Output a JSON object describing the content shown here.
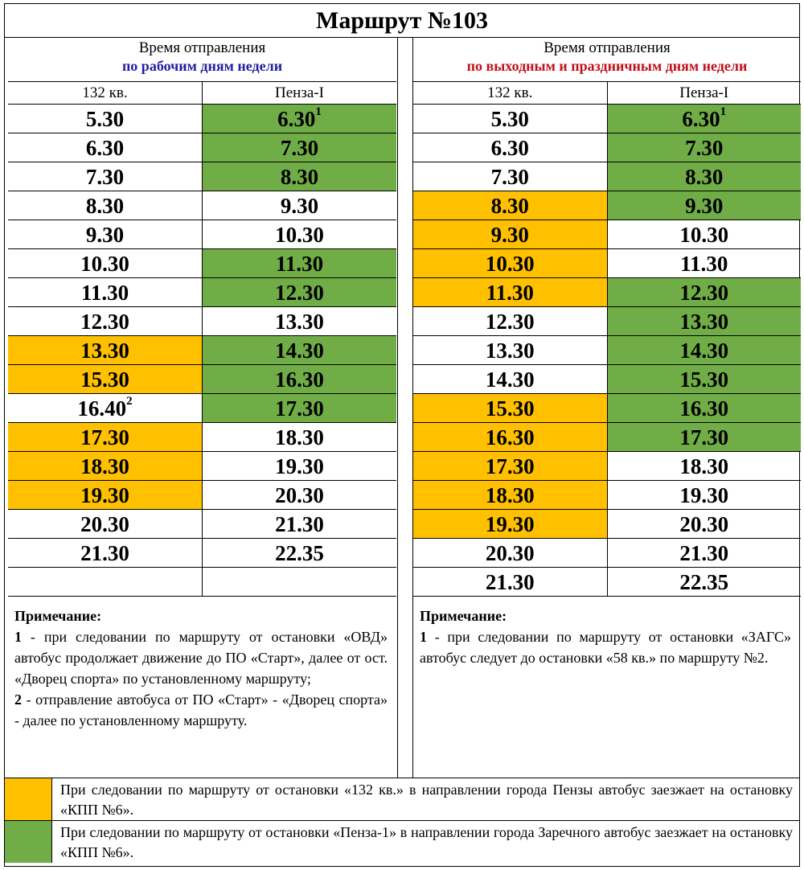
{
  "title": "Маршрут №103",
  "colors": {
    "orange": "#ffc000",
    "green": "#70ad47",
    "weekday_blue": "#1f1f9e",
    "holiday_red": "#c0101a"
  },
  "weekday": {
    "header_line1": "Время отправления",
    "header_line2": "по рабочим дням недели",
    "col1": "132 кв.",
    "col2": "Пенза-I",
    "rows": [
      {
        "a": "5.30",
        "b": "6.30",
        "b_sup": "1",
        "a_hl": "",
        "b_hl": "green"
      },
      {
        "a": "6.30",
        "b": "7.30",
        "a_hl": "",
        "b_hl": "green"
      },
      {
        "a": "7.30",
        "b": "8.30",
        "a_hl": "",
        "b_hl": "green"
      },
      {
        "a": "8.30",
        "b": "9.30",
        "a_hl": "",
        "b_hl": ""
      },
      {
        "a": "9.30",
        "b": "10.30",
        "a_hl": "",
        "b_hl": ""
      },
      {
        "a": "10.30",
        "b": "11.30",
        "a_hl": "",
        "b_hl": "green"
      },
      {
        "a": "11.30",
        "b": "12.30",
        "a_hl": "",
        "b_hl": "green"
      },
      {
        "a": "12.30",
        "b": "13.30",
        "a_hl": "",
        "b_hl": ""
      },
      {
        "a": "13.30",
        "b": "14.30",
        "a_hl": "orange",
        "b_hl": "green"
      },
      {
        "a": "15.30",
        "b": "16.30",
        "a_hl": "orange",
        "b_hl": "green"
      },
      {
        "a": "16.40",
        "a_sup": "2",
        "b": "17.30",
        "a_hl": "",
        "b_hl": "green"
      },
      {
        "a": "17.30",
        "b": "18.30",
        "a_hl": "orange",
        "b_hl": ""
      },
      {
        "a": "18.30",
        "b": "19.30",
        "a_hl": "orange",
        "b_hl": ""
      },
      {
        "a": "19.30",
        "b": "20.30",
        "a_hl": "orange",
        "b_hl": ""
      },
      {
        "a": "20.30",
        "b": "21.30",
        "a_hl": "",
        "b_hl": ""
      },
      {
        "a": "21.30",
        "b": "22.35",
        "a_hl": "",
        "b_hl": ""
      },
      {
        "a": "",
        "b": "",
        "a_hl": "",
        "b_hl": ""
      }
    ],
    "note_title": "Примечание:",
    "notes": [
      {
        "num": "1",
        "text": " - при следовании по маршруту от остановки «ОВД» автобус продолжает движение до ПО «Старт», далее от ост. «Дворец спорта» по установленному маршруту;"
      },
      {
        "num": "2",
        "text": " - отправление автобуса от ПО «Старт» - «Дворец спорта» - далее по установленному маршруту."
      }
    ]
  },
  "holiday": {
    "header_line1": "Время отправления",
    "header_line2": "по выходным и праздничным дням недели",
    "col1": "132 кв.",
    "col2": "Пенза-I",
    "rows": [
      {
        "a": "5.30",
        "b": "6.30",
        "b_sup": "1",
        "a_hl": "",
        "b_hl": "green"
      },
      {
        "a": "6.30",
        "b": "7.30",
        "a_hl": "",
        "b_hl": "green"
      },
      {
        "a": "7.30",
        "b": "8.30",
        "a_hl": "",
        "b_hl": "green"
      },
      {
        "a": "8.30",
        "b": "9.30",
        "a_hl": "orange",
        "b_hl": "green"
      },
      {
        "a": "9.30",
        "b": "10.30",
        "a_hl": "orange",
        "b_hl": ""
      },
      {
        "a": "10.30",
        "b": "11.30",
        "a_hl": "orange",
        "b_hl": ""
      },
      {
        "a": "11.30",
        "b": "12.30",
        "a_hl": "orange",
        "b_hl": "green"
      },
      {
        "a": "12.30",
        "b": "13.30",
        "a_hl": "",
        "b_hl": "green"
      },
      {
        "a": "13.30",
        "b": "14.30",
        "a_hl": "",
        "b_hl": "green"
      },
      {
        "a": "14.30",
        "b": "15.30",
        "a_hl": "",
        "b_hl": "green"
      },
      {
        "a": "15.30",
        "b": "16.30",
        "a_hl": "orange",
        "b_hl": "green"
      },
      {
        "a": "16.30",
        "b": "17.30",
        "a_hl": "orange",
        "b_hl": "green"
      },
      {
        "a": "17.30",
        "b": "18.30",
        "a_hl": "orange",
        "b_hl": ""
      },
      {
        "a": "18.30",
        "b": "19.30",
        "a_hl": "orange",
        "b_hl": ""
      },
      {
        "a": "19.30",
        "b": "20.30",
        "a_hl": "orange",
        "b_hl": ""
      },
      {
        "a": "20.30",
        "b": "21.30",
        "a_hl": "",
        "b_hl": ""
      },
      {
        "a": "21.30",
        "b": "22.35",
        "a_hl": "",
        "b_hl": ""
      }
    ],
    "note_title": "Примечание:",
    "notes": [
      {
        "num": "1",
        "text": " - при следовании по маршруту от остановки «ЗАГС» автобус следует до остановки «58 кв.» по маршруту №2."
      }
    ]
  },
  "legend": [
    {
      "color": "orange",
      "text": "При следовании по маршруту от остановки «132 кв.» в направлении города Пензы автобус заезжает на остановку «КПП №6»."
    },
    {
      "color": "green",
      "text": "При следовании по маршруту от остановки «Пенза-1» в направлении города Заречного автобус заезжает на остановку «КПП №6»."
    }
  ]
}
